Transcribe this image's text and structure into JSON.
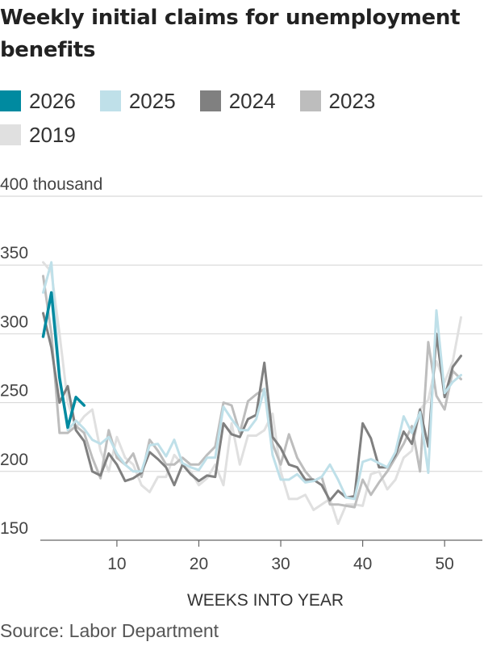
{
  "title": "Weekly initial claims for unemployment benefits",
  "source": "Source: Labor Department",
  "chart_data": {
    "type": "line",
    "title": "Weekly initial claims for unemployment benefits",
    "xlabel": "WEEKS INTO YEAR",
    "ylabel": "",
    "yunit_label": "400 thousand",
    "xlim": [
      0,
      53
    ],
    "ylim": [
      150,
      400
    ],
    "xticks": [
      10,
      20,
      30,
      40,
      50
    ],
    "yticks": [
      150,
      200,
      250,
      300,
      350,
      400
    ],
    "ytick_labels": [
      "150",
      "200",
      "250",
      "300",
      "350",
      "400 thousand"
    ],
    "grid": "horizontal",
    "legend_position": "top",
    "series": [
      {
        "name": "2019",
        "color": "#e0e0e0",
        "x": [
          1,
          2,
          3,
          4,
          5,
          6,
          7,
          8,
          9,
          10,
          11,
          12,
          13,
          14,
          15,
          16,
          17,
          18,
          19,
          20,
          21,
          22,
          23,
          24,
          25,
          26,
          27,
          28,
          29,
          30,
          31,
          32,
          33,
          34,
          35,
          36,
          37,
          38,
          39,
          40,
          41,
          42,
          43,
          44,
          45,
          46,
          47,
          48,
          49,
          50,
          51,
          52
        ],
        "y": [
          352,
          345,
          300,
          250,
          232,
          240,
          245,
          215,
          200,
          225,
          210,
          205,
          190,
          185,
          196,
          196,
          212,
          205,
          200,
          190,
          195,
          205,
          190,
          235,
          205,
          226,
          226,
          230,
          242,
          200,
          180,
          180,
          183,
          172,
          176,
          180,
          162,
          176,
          176,
          175,
          198,
          200,
          187,
          194,
          210,
          215,
          245,
          252,
          280,
          265,
          280,
          312
        ]
      },
      {
        "name": "2023",
        "color": "#bdbdbd",
        "x": [
          1,
          2,
          3,
          4,
          5,
          6,
          7,
          8,
          9,
          10,
          11,
          12,
          13,
          14,
          15,
          16,
          17,
          18,
          19,
          20,
          21,
          22,
          23,
          24,
          25,
          26,
          27,
          28,
          29,
          30,
          31,
          32,
          33,
          34,
          35,
          36,
          37,
          38,
          39,
          40,
          41,
          42,
          43,
          44,
          45,
          46,
          47,
          48,
          49,
          50,
          51,
          52
        ],
        "y": [
          342,
          300,
          228,
          228,
          233,
          228,
          210,
          195,
          230,
          210,
          205,
          213,
          196,
          223,
          215,
          205,
          205,
          210,
          205,
          205,
          212,
          218,
          250,
          248,
          228,
          251,
          256,
          260,
          220,
          205,
          227,
          210,
          200,
          193,
          196,
          176,
          176,
          175,
          174,
          194,
          183,
          192,
          200,
          210,
          220,
          233,
          200,
          294,
          255,
          245,
          273,
          267
        ]
      },
      {
        "name": "2024",
        "color": "#808080",
        "x": [
          1,
          2,
          3,
          4,
          5,
          6,
          7,
          8,
          9,
          10,
          11,
          12,
          13,
          14,
          15,
          16,
          17,
          18,
          19,
          20,
          21,
          22,
          23,
          24,
          25,
          26,
          27,
          28,
          29,
          30,
          31,
          32,
          33,
          34,
          35,
          36,
          37,
          38,
          39,
          40,
          41,
          42,
          43,
          44,
          45,
          46,
          47,
          48,
          49,
          50,
          51,
          52
        ],
        "y": [
          315,
          290,
          250,
          262,
          230,
          222,
          200,
          197,
          213,
          205,
          193,
          195,
          199,
          214,
          209,
          203,
          190,
          205,
          198,
          193,
          197,
          196,
          235,
          227,
          225,
          238,
          241,
          279,
          225,
          217,
          205,
          203,
          194,
          194,
          190,
          179,
          186,
          181,
          182,
          235,
          224,
          203,
          203,
          212,
          229,
          220,
          245,
          218,
          300,
          254,
          276,
          284
        ]
      },
      {
        "name": "2025",
        "color": "#bfe0e9",
        "x": [
          1,
          2,
          3,
          4,
          5,
          6,
          7,
          8,
          9,
          10,
          11,
          12,
          13,
          14,
          15,
          16,
          17,
          18,
          19,
          20,
          21,
          22,
          23,
          24,
          25,
          26,
          27,
          28,
          29,
          30,
          31,
          32,
          33,
          34,
          35,
          36,
          37,
          38,
          39,
          40,
          41,
          42,
          43,
          44,
          45,
          46,
          47,
          48,
          49,
          50,
          51,
          52
        ],
        "y": [
          330,
          352,
          270,
          230,
          237,
          231,
          223,
          220,
          225,
          213,
          205,
          200,
          200,
          219,
          220,
          211,
          223,
          206,
          203,
          201,
          210,
          210,
          247,
          238,
          230,
          230,
          238,
          260,
          212,
          194,
          194,
          198,
          192,
          193,
          196,
          205,
          194,
          181,
          180,
          207,
          209,
          206,
          203,
          214,
          240,
          228,
          243,
          199,
          317,
          257,
          265,
          270
        ]
      },
      {
        "name": "2026",
        "color": "#008aa0",
        "x": [
          1,
          2,
          3,
          4,
          5,
          6
        ],
        "y": [
          298,
          330,
          268,
          232,
          254,
          248
        ]
      }
    ]
  }
}
